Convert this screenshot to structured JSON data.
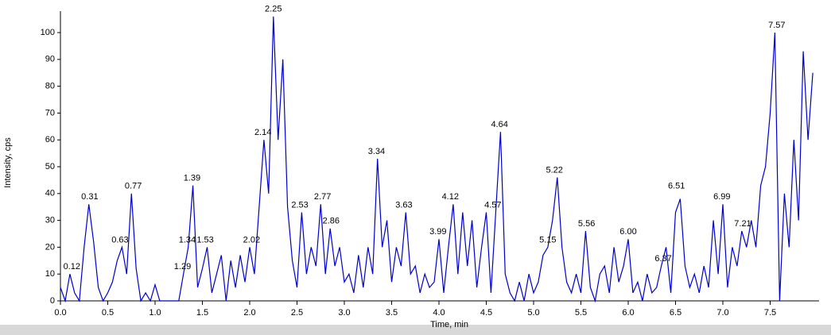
{
  "chart_data": {
    "type": "line",
    "xlabel": "Time, min",
    "ylabel": "Intensity, cps",
    "color": "#0000cc",
    "x": [
      0.0,
      0.05,
      0.1,
      0.15,
      0.2,
      0.25,
      0.3,
      0.35,
      0.4,
      0.45,
      0.5,
      0.55,
      0.6,
      0.65,
      0.7,
      0.75,
      0.8,
      0.85,
      0.9,
      0.95,
      1.0,
      1.05,
      1.1,
      1.15,
      1.2,
      1.25,
      1.3,
      1.35,
      1.4,
      1.45,
      1.5,
      1.55,
      1.6,
      1.65,
      1.7,
      1.75,
      1.8,
      1.85,
      1.9,
      1.95,
      2.0,
      2.05,
      2.1,
      2.15,
      2.2,
      2.25,
      2.3,
      2.35,
      2.4,
      2.45,
      2.5,
      2.55,
      2.6,
      2.65,
      2.7,
      2.75,
      2.8,
      2.85,
      2.9,
      2.95,
      3.0,
      3.05,
      3.1,
      3.15,
      3.2,
      3.25,
      3.3,
      3.35,
      3.4,
      3.45,
      3.5,
      3.55,
      3.6,
      3.65,
      3.7,
      3.75,
      3.8,
      3.85,
      3.9,
      3.95,
      4.0,
      4.05,
      4.1,
      4.15,
      4.2,
      4.25,
      4.3,
      4.35,
      4.4,
      4.45,
      4.5,
      4.55,
      4.6,
      4.65,
      4.7,
      4.75,
      4.8,
      4.85,
      4.9,
      4.95,
      5.0,
      5.05,
      5.1,
      5.15,
      5.2,
      5.25,
      5.3,
      5.35,
      5.4,
      5.45,
      5.5,
      5.55,
      5.6,
      5.65,
      5.7,
      5.75,
      5.8,
      5.85,
      5.9,
      5.95,
      6.0,
      6.05,
      6.1,
      6.15,
      6.2,
      6.25,
      6.3,
      6.35,
      6.4,
      6.45,
      6.5,
      6.55,
      6.6,
      6.65,
      6.7,
      6.75,
      6.8,
      6.85,
      6.9,
      6.95,
      7.0,
      7.05,
      7.1,
      7.15,
      7.2,
      7.25,
      7.3,
      7.35,
      7.4,
      7.45,
      7.5,
      7.55,
      7.6,
      7.65,
      7.7,
      7.75,
      7.8,
      7.85,
      7.9,
      7.95
    ],
    "values": [
      5,
      0,
      10,
      3,
      0,
      20,
      36,
      22,
      5,
      0,
      3,
      7,
      15,
      20,
      10,
      40,
      12,
      0,
      3,
      0,
      6,
      0,
      0,
      0,
      0,
      0,
      10,
      20,
      43,
      5,
      12,
      20,
      3,
      10,
      17,
      0,
      15,
      5,
      17,
      7,
      20,
      10,
      35,
      60,
      40,
      106,
      60,
      90,
      35,
      15,
      5,
      33,
      10,
      20,
      13,
      36,
      10,
      27,
      13,
      20,
      7,
      10,
      3,
      17,
      5,
      20,
      10,
      53,
      20,
      30,
      7,
      20,
      13,
      33,
      10,
      13,
      3,
      10,
      5,
      7,
      23,
      3,
      20,
      36,
      10,
      33,
      13,
      30,
      5,
      20,
      33,
      3,
      33,
      63,
      10,
      3,
      0,
      7,
      0,
      10,
      3,
      7,
      17,
      20,
      30,
      46,
      20,
      7,
      3,
      10,
      3,
      26,
      5,
      0,
      10,
      13,
      3,
      20,
      7,
      13,
      23,
      3,
      7,
      0,
      10,
      3,
      5,
      13,
      20,
      3,
      33,
      38,
      13,
      5,
      10,
      3,
      13,
      5,
      30,
      10,
      36,
      5,
      20,
      13,
      26,
      20,
      30,
      20,
      43,
      50,
      70,
      100,
      0,
      40,
      20,
      60,
      30,
      93,
      60,
      85
    ],
    "xlim": [
      0,
      8.0
    ],
    "ylim": [
      0,
      108
    ],
    "xticks": [
      {
        "value": 0,
        "label": "0.0"
      },
      0.5,
      {
        "value": 1,
        "label": "1.0"
      },
      1.5,
      {
        "value": 2,
        "label": "2.0"
      },
      2.5,
      {
        "value": 3,
        "label": "3.0"
      },
      3.5,
      {
        "value": 4,
        "label": "4.0"
      },
      4.5,
      {
        "value": 5,
        "label": "5.0"
      },
      5.5,
      {
        "value": 6,
        "label": "6.0"
      },
      6.5,
      {
        "value": 7,
        "label": "7.0"
      },
      7.5
    ],
    "yticks": [
      0,
      10,
      20,
      30,
      40,
      50,
      60,
      70,
      80,
      90,
      100
    ],
    "annotations": [
      {
        "label": "0.12",
        "x": 0.12,
        "y": 10
      },
      {
        "label": "0.31",
        "x": 0.31,
        "y": 36
      },
      {
        "label": "0.63",
        "x": 0.63,
        "y": 20
      },
      {
        "label": "0.77",
        "x": 0.77,
        "y": 40
      },
      {
        "label": "1.29",
        "x": 1.29,
        "y": 10
      },
      {
        "label": "1.34",
        "x": 1.34,
        "y": 20
      },
      {
        "label": "1.39",
        "x": 1.39,
        "y": 43
      },
      {
        "label": "1.53",
        "x": 1.53,
        "y": 20
      },
      {
        "label": "2.02",
        "x": 2.02,
        "y": 20
      },
      {
        "label": "2.14",
        "x": 2.14,
        "y": 60
      },
      {
        "label": "2.25",
        "x": 2.25,
        "y": 106
      },
      {
        "label": "2.53",
        "x": 2.53,
        "y": 33
      },
      {
        "label": "2.77",
        "x": 2.77,
        "y": 36
      },
      {
        "label": "2.86",
        "x": 2.86,
        "y": 27
      },
      {
        "label": "3.34",
        "x": 3.34,
        "y": 53
      },
      {
        "label": "3.63",
        "x": 3.63,
        "y": 33
      },
      {
        "label": "3.99",
        "x": 3.99,
        "y": 23
      },
      {
        "label": "4.12",
        "x": 4.12,
        "y": 36
      },
      {
        "label": "4.57",
        "x": 4.57,
        "y": 33
      },
      {
        "label": "4.64",
        "x": 4.64,
        "y": 63
      },
      {
        "label": "5.15",
        "x": 5.15,
        "y": 20
      },
      {
        "label": "5.22",
        "x": 5.22,
        "y": 46
      },
      {
        "label": "5.56",
        "x": 5.56,
        "y": 26
      },
      {
        "label": "6.00",
        "x": 6.0,
        "y": 23
      },
      {
        "label": "6.37",
        "x": 6.37,
        "y": 13
      },
      {
        "label": "6.51",
        "x": 6.51,
        "y": 40
      },
      {
        "label": "6.99",
        "x": 6.99,
        "y": 36
      },
      {
        "label": "7.21",
        "x": 7.21,
        "y": 26
      },
      {
        "label": "7.57",
        "x": 7.57,
        "y": 100
      }
    ]
  }
}
